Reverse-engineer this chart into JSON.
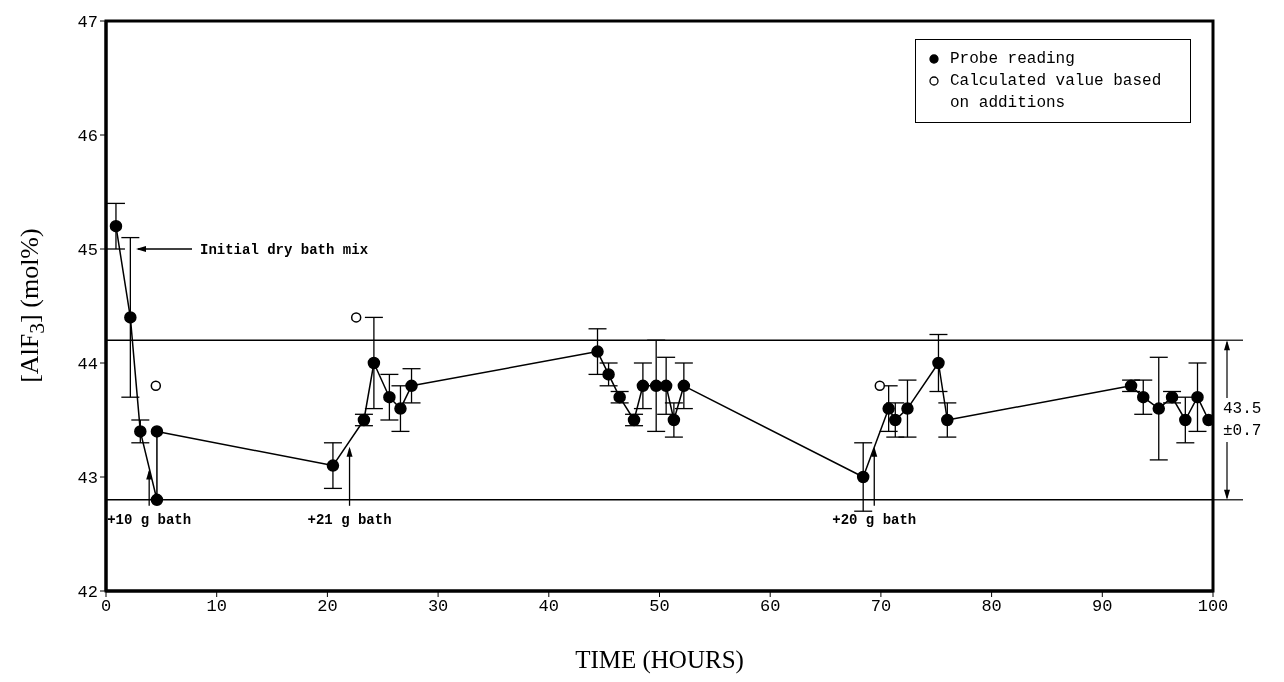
{
  "chart_data": {
    "type": "line",
    "xlabel": "TIME (HOURS)",
    "ylabel": "[AlF$_{3}$] (mol%)",
    "xlim": [
      0,
      100
    ],
    "xticks": [
      0,
      10,
      20,
      30,
      40,
      50,
      60,
      70,
      80,
      90,
      100
    ],
    "ylim": [
      42,
      47
    ],
    "yticks": [
      42,
      43,
      44,
      45,
      46,
      47
    ],
    "grid": false,
    "legend": "top right",
    "marker": "circle",
    "line_style": "solid",
    "series": [
      {
        "name": "Probe reading",
        "color": "#000000",
        "x": [
          0.9,
          2.2,
          3.1,
          4.6,
          4.6,
          20.5,
          23.3,
          24.2,
          25.6,
          26.6,
          27.6,
          44.4,
          45.4,
          46.4,
          47.7,
          48.5,
          49.7,
          50.6,
          51.3,
          52.2,
          68.4,
          70.7,
          71.3,
          72.4,
          75.2,
          76.0,
          92.6,
          93.7,
          95.1,
          96.3,
          97.5,
          98.6,
          99.6
        ],
        "values": [
          45.2,
          44.4,
          43.4,
          42.8,
          43.4,
          43.1,
          43.5,
          44.0,
          43.7,
          43.6,
          43.8,
          44.1,
          43.9,
          43.7,
          43.5,
          43.8,
          43.8,
          43.8,
          43.5,
          43.8,
          43.0,
          43.6,
          43.5,
          43.6,
          44.0,
          43.5,
          43.8,
          43.7,
          43.6,
          43.7,
          43.5,
          43.7,
          43.5
        ],
        "errors": [
          0.2,
          0.7,
          0.1,
          null,
          null,
          0.2,
          0.05,
          0.4,
          0.2,
          0.2,
          0.15,
          0.2,
          0.1,
          0.05,
          0.05,
          0.2,
          0.4,
          0.25,
          0.15,
          0.2,
          0.3,
          0.2,
          0.15,
          0.25,
          0.25,
          0.15,
          0.05,
          0.15,
          0.45,
          0.05,
          0.2,
          0.3,
          null
        ]
      },
      {
        "name": "Calculated value based on additions",
        "type": "scatter",
        "color": "#000000",
        "x": [
          4.5,
          22.6,
          69.9
        ],
        "values": [
          43.8,
          44.4,
          43.8
        ]
      }
    ],
    "ref_lines": [
      {
        "axis": "y",
        "value": 44.2,
        "color": "#000000"
      },
      {
        "axis": "y",
        "value": 42.8,
        "color": "#000000"
      }
    ],
    "annotations": [
      "Initial dry bath mix",
      {
        "text": "+10 g bath",
        "x": 3.9,
        "y": 43.1
      },
      {
        "text": "+21 g bath",
        "x": 22.0,
        "y": 43.3
      },
      {
        "text": "+20 g bath",
        "x": 69.4,
        "y": 43.3
      },
      "43.5 ±0.7"
    ]
  }
}
